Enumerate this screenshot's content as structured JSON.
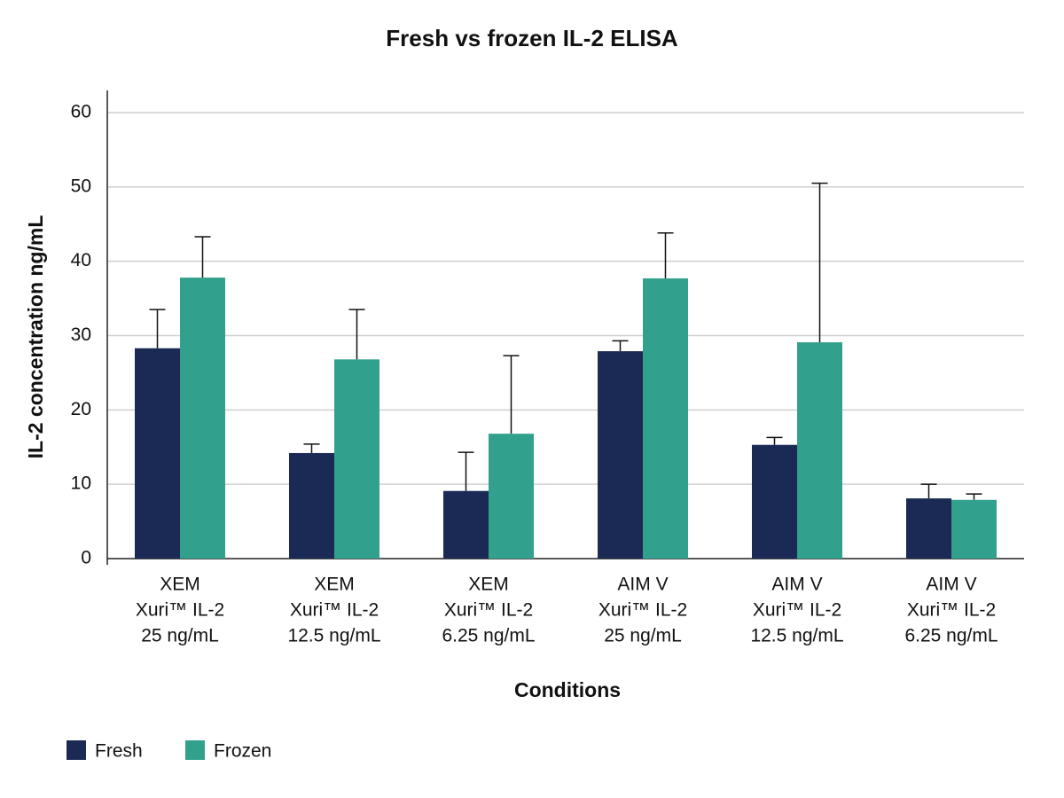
{
  "chart_data": {
    "type": "bar",
    "title": "Fresh vs frozen IL-2 ELISA",
    "x_label": "Conditions",
    "y_label": "IL-2 concentration ng/mL",
    "categories": [
      [
        "XEM",
        "Xuri™ IL-2",
        "25 ng/mL"
      ],
      [
        "XEM",
        "Xuri™ IL-2",
        "12.5 ng/mL"
      ],
      [
        "XEM",
        "Xuri™ IL-2",
        "6.25 ng/mL"
      ],
      [
        "AIM V",
        "Xuri™ IL-2",
        "25 ng/mL"
      ],
      [
        "AIM V",
        "Xuri™ IL-2",
        "12.5 ng/mL"
      ],
      [
        "AIM V",
        "Xuri™ IL-2",
        "6.25 ng/mL"
      ]
    ],
    "series": [
      {
        "name": "Fresh",
        "color": "#1b2a55",
        "values": [
          28.3,
          14.2,
          9.1,
          27.9,
          15.3,
          8.1
        ],
        "errors": [
          5.2,
          1.2,
          5.2,
          1.4,
          1.0,
          1.9
        ]
      },
      {
        "name": "Frozen",
        "color": "#31a08c",
        "values": [
          37.8,
          26.8,
          16.8,
          37.7,
          29.1,
          7.9
        ],
        "errors": [
          5.5,
          6.7,
          10.5,
          6.1,
          21.4,
          0.8
        ]
      }
    ],
    "ylim": [
      0,
      60
    ],
    "yticks": [
      0,
      10,
      20,
      30,
      40,
      50,
      60
    ],
    "grid": true,
    "legend": "bottom-left"
  }
}
